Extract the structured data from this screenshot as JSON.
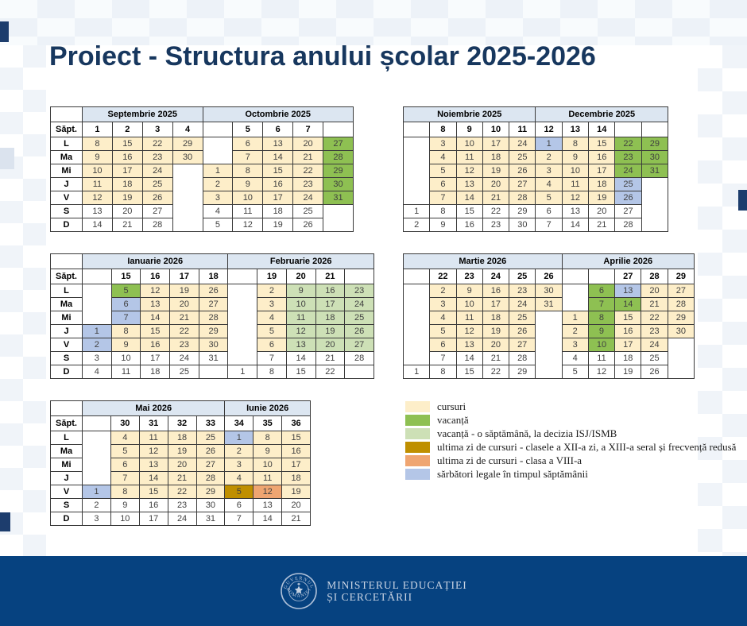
{
  "title": "Proiect - Structura anului școlar 2025-2026",
  "palette": {
    "courses": "#FDEEC9",
    "vacation": "#8EC052",
    "vacation_isj": "#CDE0B6",
    "last_day_12": "#BF8F00",
    "last_day_8": "#EFA571",
    "legal_holiday": "#B4C6E7",
    "month_header_bg": "#DCE6F1"
  },
  "week_label": "Săpt.",
  "day_labels": [
    "L",
    "Ma",
    "Mi",
    "J",
    "V",
    "S",
    "D"
  ],
  "tables": [
    {
      "months": [
        {
          "label": "Septembrie 2025",
          "span": 4
        },
        {
          "label": "Octombrie 2025",
          "span": 5
        }
      ],
      "has_day_labels": true,
      "weeks": [
        "1",
        "2",
        "3",
        "4",
        "",
        "5",
        "6",
        "7",
        ""
      ],
      "rows": [
        [
          [
            "8",
            "courses"
          ],
          [
            "15",
            "courses"
          ],
          [
            "22",
            "courses"
          ],
          [
            "29",
            "courses"
          ],
          "",
          [
            "6",
            "courses"
          ],
          [
            "13",
            "courses"
          ],
          [
            "20",
            "courses"
          ],
          [
            "27",
            "vacation"
          ]
        ],
        [
          [
            "9",
            "courses"
          ],
          [
            "16",
            "courses"
          ],
          [
            "23",
            "courses"
          ],
          [
            "30",
            "courses"
          ],
          "",
          [
            "7",
            "courses"
          ],
          [
            "14",
            "courses"
          ],
          [
            "21",
            "courses"
          ],
          [
            "28",
            "vacation"
          ]
        ],
        [
          [
            "10",
            "courses"
          ],
          [
            "17",
            "courses"
          ],
          [
            "24",
            "courses"
          ],
          "",
          [
            "1",
            "courses"
          ],
          [
            "8",
            "courses"
          ],
          [
            "15",
            "courses"
          ],
          [
            "22",
            "courses"
          ],
          [
            "29",
            "vacation"
          ]
        ],
        [
          [
            "11",
            "courses"
          ],
          [
            "18",
            "courses"
          ],
          [
            "25",
            "courses"
          ],
          "",
          [
            "2",
            "courses"
          ],
          [
            "9",
            "courses"
          ],
          [
            "16",
            "courses"
          ],
          [
            "23",
            "courses"
          ],
          [
            "30",
            "vacation"
          ]
        ],
        [
          [
            "12",
            "courses"
          ],
          [
            "19",
            "courses"
          ],
          [
            "26",
            "courses"
          ],
          "",
          [
            "3",
            "courses"
          ],
          [
            "10",
            "courses"
          ],
          [
            "17",
            "courses"
          ],
          [
            "24",
            "courses"
          ],
          [
            "31",
            "vacation"
          ]
        ],
        [
          "13",
          "20",
          "27",
          "",
          "4",
          "11",
          "18",
          "25",
          ""
        ],
        [
          "14",
          "21",
          "28",
          "",
          "5",
          "12",
          "19",
          "26",
          ""
        ]
      ]
    },
    {
      "months": [
        {
          "label": "Noiembrie 2025",
          "span": 5
        },
        {
          "label": "Decembrie 2025",
          "span": 5
        }
      ],
      "has_day_labels": false,
      "weeks": [
        "",
        "8",
        "9",
        "10",
        "11",
        "12",
        "13",
        "14",
        "",
        ""
      ],
      "rows": [
        [
          "",
          [
            "3",
            "courses"
          ],
          [
            "10",
            "courses"
          ],
          [
            "17",
            "courses"
          ],
          [
            "24",
            "courses"
          ],
          [
            "1",
            "legal_holiday"
          ],
          [
            "8",
            "courses"
          ],
          [
            "15",
            "courses"
          ],
          [
            "22",
            "vacation"
          ],
          [
            "29",
            "vacation"
          ]
        ],
        [
          "",
          [
            "4",
            "courses"
          ],
          [
            "11",
            "courses"
          ],
          [
            "18",
            "courses"
          ],
          [
            "25",
            "courses"
          ],
          [
            "2",
            "courses"
          ],
          [
            "9",
            "courses"
          ],
          [
            "16",
            "courses"
          ],
          [
            "23",
            "vacation"
          ],
          [
            "30",
            "vacation"
          ]
        ],
        [
          "",
          [
            "5",
            "courses"
          ],
          [
            "12",
            "courses"
          ],
          [
            "19",
            "courses"
          ],
          [
            "26",
            "courses"
          ],
          [
            "3",
            "courses"
          ],
          [
            "10",
            "courses"
          ],
          [
            "17",
            "courses"
          ],
          [
            "24",
            "vacation"
          ],
          [
            "31",
            "vacation"
          ]
        ],
        [
          "",
          [
            "6",
            "courses"
          ],
          [
            "13",
            "courses"
          ],
          [
            "20",
            "courses"
          ],
          [
            "27",
            "courses"
          ],
          [
            "4",
            "courses"
          ],
          [
            "11",
            "courses"
          ],
          [
            "18",
            "courses"
          ],
          [
            "25",
            "legal_holiday"
          ],
          ""
        ],
        [
          "",
          [
            "7",
            "courses"
          ],
          [
            "14",
            "courses"
          ],
          [
            "21",
            "courses"
          ],
          [
            "28",
            "courses"
          ],
          [
            "5",
            "courses"
          ],
          [
            "12",
            "courses"
          ],
          [
            "19",
            "courses"
          ],
          [
            "26",
            "legal_holiday"
          ],
          ""
        ],
        [
          "1",
          "8",
          "15",
          "22",
          "29",
          "6",
          "13",
          "20",
          "27",
          ""
        ],
        [
          "2",
          "9",
          "16",
          "23",
          "30",
          "7",
          "14",
          "21",
          "28",
          ""
        ]
      ]
    },
    {
      "months": [
        {
          "label": "Ianuarie 2026",
          "span": 5
        },
        {
          "label": "Februarie 2026",
          "span": 5
        }
      ],
      "has_day_labels": true,
      "weeks": [
        "",
        "15",
        "16",
        "17",
        "18",
        "",
        "19",
        "20",
        "21",
        ""
      ],
      "rows": [
        [
          "",
          [
            "5",
            "vacation"
          ],
          [
            "12",
            "courses"
          ],
          [
            "19",
            "courses"
          ],
          [
            "26",
            "courses"
          ],
          "",
          [
            "2",
            "courses"
          ],
          [
            "9",
            "vacation_isj"
          ],
          [
            "16",
            "vacation_isj"
          ],
          [
            "23",
            "vacation_isj"
          ]
        ],
        [
          "",
          [
            "6",
            "legal_holiday"
          ],
          [
            "13",
            "courses"
          ],
          [
            "20",
            "courses"
          ],
          [
            "27",
            "courses"
          ],
          "",
          [
            "3",
            "courses"
          ],
          [
            "10",
            "vacation_isj"
          ],
          [
            "17",
            "vacation_isj"
          ],
          [
            "24",
            "vacation_isj"
          ]
        ],
        [
          "",
          [
            "7",
            "legal_holiday"
          ],
          [
            "14",
            "courses"
          ],
          [
            "21",
            "courses"
          ],
          [
            "28",
            "courses"
          ],
          "",
          [
            "4",
            "courses"
          ],
          [
            "11",
            "vacation_isj"
          ],
          [
            "18",
            "vacation_isj"
          ],
          [
            "25",
            "vacation_isj"
          ]
        ],
        [
          [
            "1",
            "legal_holiday"
          ],
          [
            "8",
            "courses"
          ],
          [
            "15",
            "courses"
          ],
          [
            "22",
            "courses"
          ],
          [
            "29",
            "courses"
          ],
          "",
          [
            "5",
            "courses"
          ],
          [
            "12",
            "vacation_isj"
          ],
          [
            "19",
            "vacation_isj"
          ],
          [
            "26",
            "vacation_isj"
          ]
        ],
        [
          [
            "2",
            "legal_holiday"
          ],
          [
            "9",
            "courses"
          ],
          [
            "16",
            "courses"
          ],
          [
            "23",
            "courses"
          ],
          [
            "30",
            "courses"
          ],
          "",
          [
            "6",
            "courses"
          ],
          [
            "13",
            "vacation_isj"
          ],
          [
            "20",
            "vacation_isj"
          ],
          [
            "27",
            "vacation_isj"
          ]
        ],
        [
          "3",
          "10",
          "17",
          "24",
          "31",
          "",
          "7",
          "14",
          "21",
          "28"
        ],
        [
          "4",
          "11",
          "18",
          "25",
          "",
          "1",
          "8",
          "15",
          "22",
          ""
        ]
      ]
    },
    {
      "months": [
        {
          "label": "Martie 2026",
          "span": 6
        },
        {
          "label": "Aprilie 2026",
          "span": 5
        }
      ],
      "has_day_labels": false,
      "weeks": [
        "",
        "22",
        "23",
        "24",
        "25",
        "26",
        "",
        "",
        "27",
        "28",
        "29"
      ],
      "rows": [
        [
          "",
          [
            "2",
            "courses"
          ],
          [
            "9",
            "courses"
          ],
          [
            "16",
            "courses"
          ],
          [
            "23",
            "courses"
          ],
          [
            "30",
            "courses"
          ],
          "",
          [
            "6",
            "vacation"
          ],
          [
            "13",
            "legal_holiday"
          ],
          [
            "20",
            "courses"
          ],
          [
            "27",
            "courses"
          ]
        ],
        [
          "",
          [
            "3",
            "courses"
          ],
          [
            "10",
            "courses"
          ],
          [
            "17",
            "courses"
          ],
          [
            "24",
            "courses"
          ],
          [
            "31",
            "courses"
          ],
          "",
          [
            "7",
            "vacation"
          ],
          [
            "14",
            "vacation"
          ],
          [
            "21",
            "courses"
          ],
          [
            "28",
            "courses"
          ]
        ],
        [
          "",
          [
            "4",
            "courses"
          ],
          [
            "11",
            "courses"
          ],
          [
            "18",
            "courses"
          ],
          [
            "25",
            "courses"
          ],
          "",
          [
            "1",
            "courses"
          ],
          [
            "8",
            "vacation"
          ],
          [
            "15",
            "courses"
          ],
          [
            "22",
            "courses"
          ],
          [
            "29",
            "courses"
          ]
        ],
        [
          "",
          [
            "5",
            "courses"
          ],
          [
            "12",
            "courses"
          ],
          [
            "19",
            "courses"
          ],
          [
            "26",
            "courses"
          ],
          "",
          [
            "2",
            "courses"
          ],
          [
            "9",
            "vacation"
          ],
          [
            "16",
            "courses"
          ],
          [
            "23",
            "courses"
          ],
          [
            "30",
            "courses"
          ]
        ],
        [
          "",
          [
            "6",
            "courses"
          ],
          [
            "13",
            "courses"
          ],
          [
            "20",
            "courses"
          ],
          [
            "27",
            "courses"
          ],
          "",
          [
            "3",
            "courses"
          ],
          [
            "10",
            "vacation"
          ],
          [
            "17",
            "courses"
          ],
          [
            "24",
            "courses"
          ],
          ""
        ],
        [
          "",
          "7",
          "14",
          "21",
          "28",
          "",
          "4",
          "11",
          "18",
          "25",
          ""
        ],
        [
          "1",
          "8",
          "15",
          "22",
          "29",
          "",
          "5",
          "12",
          "19",
          "26",
          ""
        ]
      ]
    },
    {
      "months": [
        {
          "label": "Mai 2026",
          "span": 5
        },
        {
          "label": "Iunie 2026",
          "span": 3
        }
      ],
      "has_day_labels": true,
      "weeks": [
        "",
        "30",
        "31",
        "32",
        "33",
        "34",
        "35",
        "36"
      ],
      "rows": [
        [
          "",
          [
            "4",
            "courses"
          ],
          [
            "11",
            "courses"
          ],
          [
            "18",
            "courses"
          ],
          [
            "25",
            "courses"
          ],
          [
            "1",
            "legal_holiday"
          ],
          [
            "8",
            "courses"
          ],
          [
            "15",
            "courses"
          ]
        ],
        [
          "",
          [
            "5",
            "courses"
          ],
          [
            "12",
            "courses"
          ],
          [
            "19",
            "courses"
          ],
          [
            "26",
            "courses"
          ],
          [
            "2",
            "courses"
          ],
          [
            "9",
            "courses"
          ],
          [
            "16",
            "courses"
          ]
        ],
        [
          "",
          [
            "6",
            "courses"
          ],
          [
            "13",
            "courses"
          ],
          [
            "20",
            "courses"
          ],
          [
            "27",
            "courses"
          ],
          [
            "3",
            "courses"
          ],
          [
            "10",
            "courses"
          ],
          [
            "17",
            "courses"
          ]
        ],
        [
          "",
          [
            "7",
            "courses"
          ],
          [
            "14",
            "courses"
          ],
          [
            "21",
            "courses"
          ],
          [
            "28",
            "courses"
          ],
          [
            "4",
            "courses"
          ],
          [
            "11",
            "courses"
          ],
          [
            "18",
            "courses"
          ]
        ],
        [
          [
            "1",
            "legal_holiday"
          ],
          [
            "8",
            "courses"
          ],
          [
            "15",
            "courses"
          ],
          [
            "22",
            "courses"
          ],
          [
            "29",
            "courses"
          ],
          [
            "5",
            "last_day_12"
          ],
          [
            "12",
            "last_day_8"
          ],
          [
            "19",
            "courses"
          ]
        ],
        [
          "2",
          "9",
          "16",
          "23",
          "30",
          "6",
          "13",
          "20"
        ],
        [
          "3",
          "10",
          "17",
          "24",
          "31",
          "7",
          "14",
          "21"
        ]
      ]
    }
  ],
  "legend": [
    {
      "color": "courses",
      "label": "cursuri"
    },
    {
      "color": "vacation",
      "label": "vacanță"
    },
    {
      "color": "vacation_isj",
      "label": "vacanță - o săptămână, la decizia ISJ/ISMB"
    },
    {
      "color": "last_day_12",
      "label": "ultima zi de cursuri - clasele a XII-a zi, a XIII-a seral și frecvență redusă"
    },
    {
      "color": "last_day_8",
      "label": "ultima zi de cursuri - clasa a VIII-a"
    },
    {
      "color": "legal_holiday",
      "label": "sărbători legale în timpul săptămânii"
    }
  ],
  "footer": {
    "ministry_line1": "MINISTERUL EDUCAȚIEI",
    "ministry_line2": "ȘI CERCETĂRII",
    "seal_top": "GUVERNUL",
    "seal_bottom": "ROMÂNIEI"
  }
}
